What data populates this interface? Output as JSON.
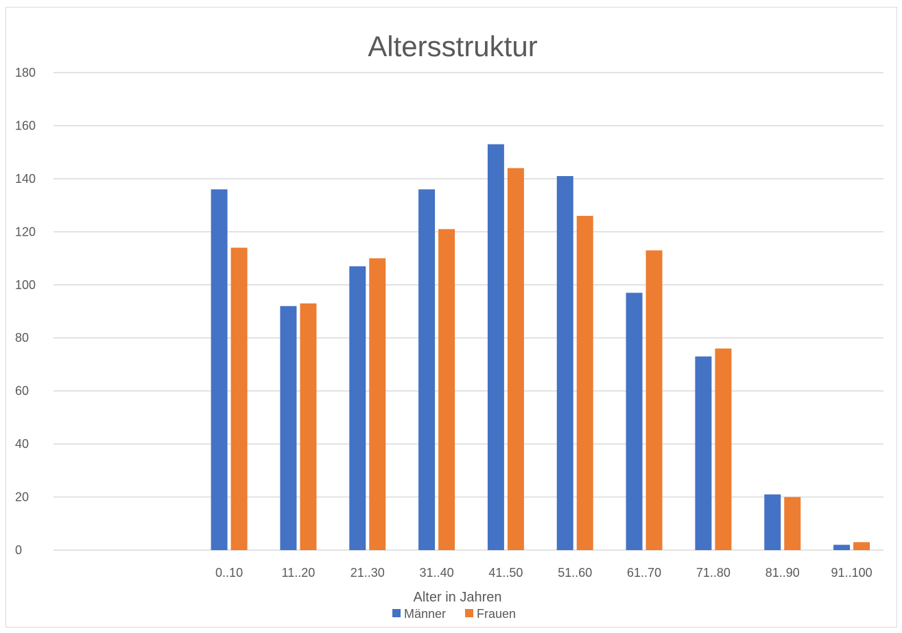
{
  "chart_data": {
    "type": "bar",
    "title": "Altersstruktur",
    "xlabel": "Alter in Jahren",
    "ylabel": "",
    "ylim": [
      0,
      180
    ],
    "y_ticks": [
      "0",
      "20",
      "40",
      "60",
      "80",
      "100",
      "120",
      "140",
      "160",
      "180"
    ],
    "y_tick_values": [
      0,
      20,
      40,
      60,
      80,
      100,
      120,
      140,
      160,
      180
    ],
    "categories": [
      "",
      "",
      "0..10",
      "11..20",
      "21..30",
      "31..40",
      "41..50",
      "51..60",
      "61..70",
      "71..80",
      "81..90",
      "91..100"
    ],
    "series": [
      {
        "name": "Männer",
        "color": "#4472c4",
        "values": [
          null,
          null,
          136,
          92,
          107,
          136,
          153,
          141,
          97,
          73,
          21,
          2
        ]
      },
      {
        "name": "Frauen",
        "color": "#ed7d31",
        "values": [
          null,
          null,
          114,
          93,
          110,
          121,
          144,
          126,
          113,
          76,
          20,
          3
        ]
      }
    ],
    "grid": true,
    "legend_position": "bottom"
  }
}
